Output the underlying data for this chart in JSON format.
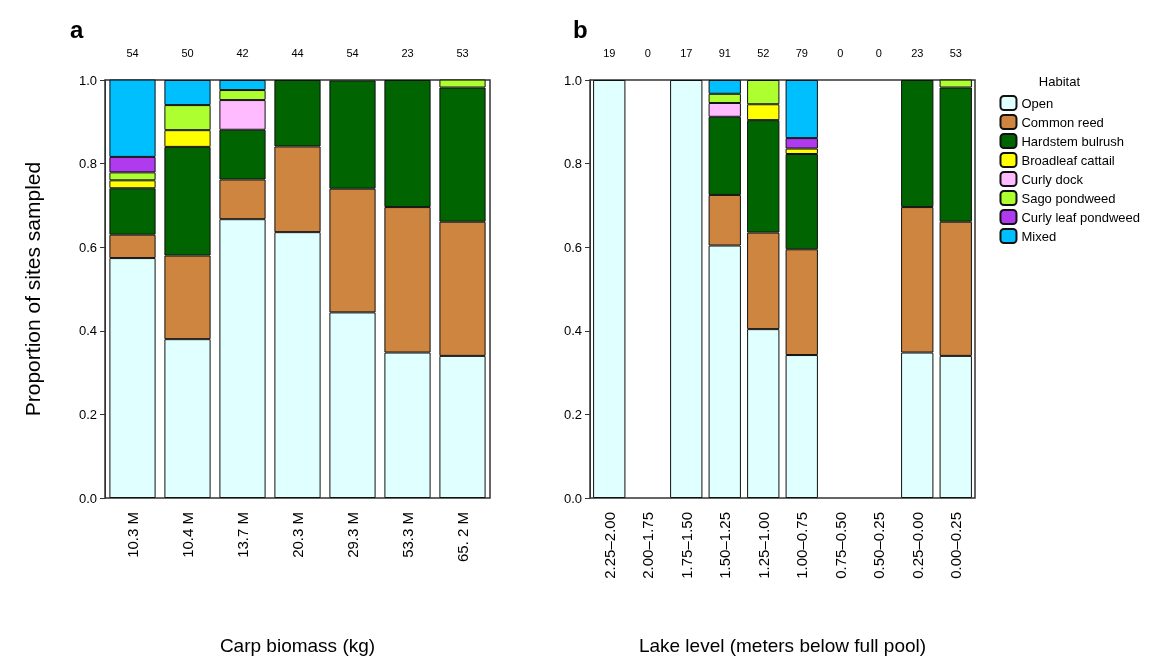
{
  "chart_data": [
    {
      "type": "bar",
      "title": "a",
      "xlabel": "Carp biomass (kg)",
      "ylabel": "Proportion of sites sampled",
      "categories": [
        "10.3 M",
        "10.4 M",
        "13.7 M",
        "20.3 M",
        "29.3 M",
        "53.3 M",
        "65. 2 M"
      ],
      "stacked": true,
      "ylim": [
        0,
        1
      ],
      "yticks": [
        {
          "value": 0,
          "label": "0.0"
        },
        {
          "value": 0.2,
          "label": "0.2"
        },
        {
          "value": 0.4,
          "label": "0.4"
        },
        {
          "value": 0.6,
          "label": "0.6"
        },
        {
          "value": 0.8,
          "label": "0.8"
        },
        {
          "value": 1,
          "label": "1.0"
        }
      ],
      "annotations": [
        "54",
        "50",
        "42",
        "44",
        "54",
        "23",
        "53"
      ],
      "series": [
        {
          "color": "#e0ffff",
          "values": [
            0.574,
            0.38,
            0.667,
            0.636,
            0.444,
            0.348,
            0.34
          ]
        },
        {
          "color": "#cd853f",
          "values": [
            0.056,
            0.2,
            0.095,
            0.205,
            0.296,
            0.348,
            0.321
          ]
        },
        {
          "color": "#006400",
          "values": [
            0.111,
            0.26,
            0.119,
            0.159,
            0.259,
            0.304,
            0.321
          ]
        },
        {
          "color": "#ffff00",
          "values": [
            0.019,
            0.04,
            null,
            null,
            null,
            null,
            null
          ]
        },
        {
          "color": "#ffbbff",
          "values": [
            null,
            null,
            0.071,
            null,
            null,
            null,
            null
          ]
        },
        {
          "color": "#adff2f",
          "values": [
            0.019,
            0.06,
            0.024,
            null,
            null,
            null,
            0.019
          ]
        },
        {
          "color": "#b03aee",
          "values": [
            0.037,
            null,
            null,
            null,
            null,
            null,
            null
          ]
        },
        {
          "color": "#00bfff",
          "values": [
            0.185,
            0.06,
            0.024,
            null,
            null,
            null,
            null
          ]
        }
      ]
    },
    {
      "type": "bar",
      "title": "b",
      "xlabel": "Lake level (meters below full pool)",
      "legend_title": "Habitat",
      "categories": [
        "2.25–2.00",
        "2.00–1.75",
        "1.75–1.50",
        "1.50–1.25",
        "1.25–1.00",
        "1.00–0.75",
        "0.75–0.50",
        "0.50–0.25",
        "0.25–0.00",
        "0.00–0.25"
      ],
      "stacked": true,
      "ylim": [
        0,
        1
      ],
      "yticks": [
        {
          "value": 0,
          "label": "0.0"
        },
        {
          "value": 0.2,
          "label": "0.2"
        },
        {
          "value": 0.4,
          "label": "0.4"
        },
        {
          "value": 0.6,
          "label": "0.6"
        },
        {
          "value": 0.8,
          "label": "0.8"
        },
        {
          "value": 1,
          "label": "1.0"
        }
      ],
      "legend": "right",
      "annotations": [
        "19",
        "0",
        "17",
        "91",
        "52",
        "79",
        "0",
        "0",
        "23",
        "53"
      ],
      "series": [
        {
          "name": "Open",
          "color": "#e0ffff",
          "values": [
            1,
            null,
            1,
            0.604,
            0.404,
            0.342,
            null,
            null,
            0.348,
            0.34
          ]
        },
        {
          "name": "Common reed",
          "color": "#cd853f",
          "values": [
            null,
            null,
            null,
            0.121,
            0.231,
            0.253,
            null,
            null,
            0.348,
            0.321
          ]
        },
        {
          "name": "Hardstem bulrush",
          "color": "#006400",
          "values": [
            null,
            null,
            null,
            0.187,
            0.269,
            0.228,
            null,
            null,
            0.304,
            0.321
          ]
        },
        {
          "name": "Broadleaf cattail",
          "color": "#ffff00",
          "values": [
            null,
            null,
            null,
            null,
            0.038,
            0.013,
            null,
            null,
            null,
            null
          ]
        },
        {
          "name": "Curly dock",
          "color": "#ffbbff",
          "values": [
            null,
            null,
            null,
            0.033,
            null,
            null,
            null,
            null,
            null,
            null
          ]
        },
        {
          "name": "Sago pondweed",
          "color": "#adff2f",
          "values": [
            null,
            null,
            null,
            0.022,
            0.058,
            null,
            null,
            null,
            null,
            0.019
          ]
        },
        {
          "name": "Curly leaf pondweed",
          "color": "#b03aee",
          "values": [
            null,
            null,
            null,
            null,
            null,
            0.025,
            null,
            null,
            null,
            null
          ]
        },
        {
          "name": "Mixed",
          "color": "#00bfff",
          "values": [
            null,
            null,
            null,
            0.033,
            null,
            0.139,
            null,
            null,
            null,
            null
          ]
        }
      ]
    }
  ]
}
